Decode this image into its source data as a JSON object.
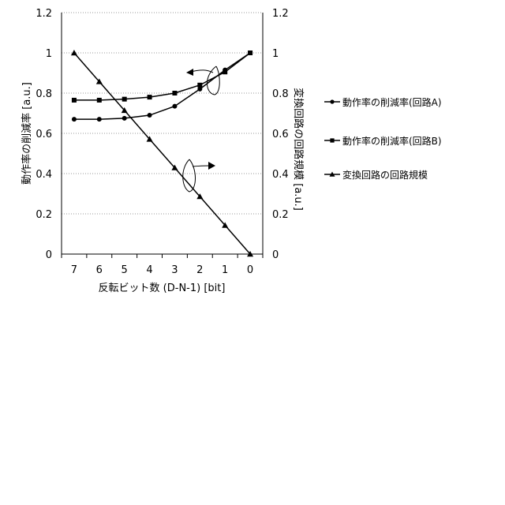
{
  "chart_data": {
    "type": "line",
    "xlabel": "反転ビット数 (D-N-1) [bit]",
    "ylabel_left": "動作率の削減率 [a.u.]",
    "ylabel_right": "変換回路の回路規模 [a.u.]",
    "x": [
      7,
      6,
      5,
      4,
      3,
      2,
      1,
      0
    ],
    "x_reversed": true,
    "ylim_left": [
      0,
      1.2
    ],
    "ylim_right": [
      0,
      1.2
    ],
    "yticks": [
      "0",
      "0.2",
      "0.4",
      "0.6",
      "0.8",
      "1",
      "1.2"
    ],
    "grid": "horizontal dotted",
    "legend_position": "right",
    "series": [
      {
        "name": "動作率の削減率(回路A)",
        "axis": "left",
        "marker": "circle",
        "values": [
          0.67,
          0.67,
          0.675,
          0.69,
          0.735,
          0.82,
          0.915,
          1.0
        ]
      },
      {
        "name": "動作率の削減率(回路B)",
        "axis": "left",
        "marker": "square",
        "values": [
          0.765,
          0.765,
          0.77,
          0.78,
          0.8,
          0.84,
          0.905,
          1.0
        ]
      },
      {
        "name": "変換回路の回路規模",
        "axis": "right",
        "marker": "triangle",
        "values": [
          1.0,
          0.857,
          0.714,
          0.571,
          0.429,
          0.286,
          0.143,
          0.0
        ]
      }
    ],
    "annotations": [
      {
        "points_to": "left",
        "near_series": "動作率の削減率"
      },
      {
        "points_to": "right",
        "near_series": "変換回路の回路規模"
      }
    ]
  }
}
